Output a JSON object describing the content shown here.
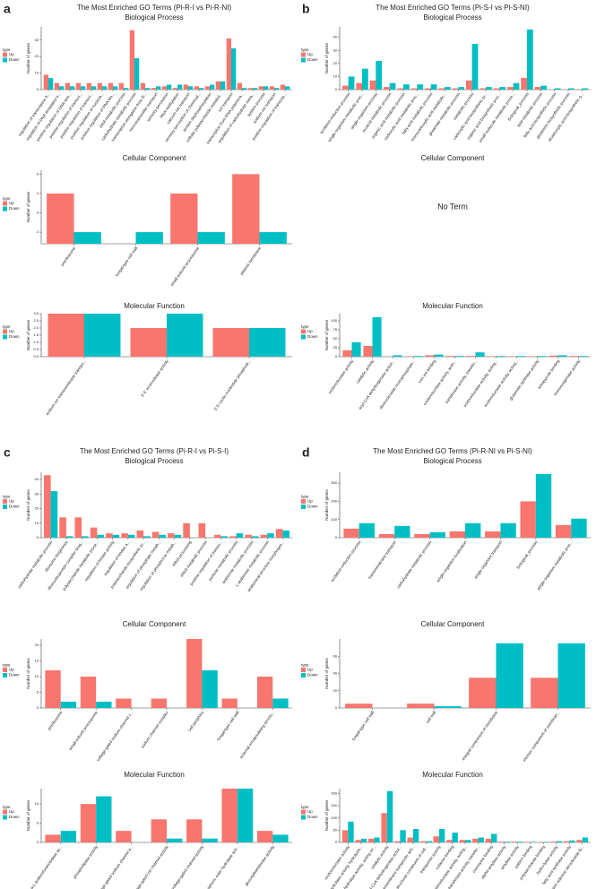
{
  "chart_data": [
    {
      "type": "bar",
      "panel": "a",
      "title": "The Most Enriched GO Terms (Pi-R-I vs Pi-R-NI)",
      "subtitle": "Biological Process",
      "ylabel": "Number of genes",
      "legend_title": "type",
      "categories": [
        "regulation of transcription fr...",
        "regulation of DNA-templated tr...",
        "positive regulation of DNA-tem...",
        "positive regulation of transcri...",
        "positive regulation of transcri...",
        "positive regulation of nucleob...",
        "positive regulation of RNA bio...",
        "DNA metabolic process",
        "carbohydrate metabolic process",
        "transcription elongation from R...",
        "neurotransmitter transport",
        "sensory perception",
        "RNA methylation",
        "calcium ion transport",
        "sensory perception of chemical...",
        "protein dephosphorylation",
        "cellular polysaccharide metabol...",
        "ion transport",
        "transcription from RNA polymera...",
        "regulation of carbohydrate meta...",
        "system process",
        "sodium ion transport",
        "positive regulation of transcrip..."
      ],
      "series": [
        {
          "name": "Up",
          "color": "#f8766d",
          "values": [
            9,
            4,
            4,
            4,
            4,
            4,
            4,
            4,
            36,
            4,
            1,
            2,
            1,
            3,
            2,
            2,
            5,
            31,
            4,
            1,
            2,
            2,
            3
          ]
        },
        {
          "name": "Down",
          "color": "#00bfc4",
          "values": [
            7,
            2,
            2,
            2,
            2,
            2,
            2,
            1,
            19,
            1,
            2,
            3,
            3,
            2,
            1,
            3,
            5,
            25,
            1,
            1,
            2,
            1,
            2
          ]
        }
      ],
      "ylim": [
        0,
        38
      ],
      "yticks": [
        0,
        10,
        20,
        30
      ]
    },
    {
      "type": "bar",
      "subtitle": "Cellular Component",
      "ylabel": "Number of genes",
      "legend_title": "type",
      "categories": [
        "preribosome",
        "fungal-type cell wall",
        "small-subunit processome",
        "plasma membrane"
      ],
      "series": [
        {
          "name": "Up",
          "color": "#f8766d",
          "values": [
            4,
            null,
            4,
            5
          ]
        },
        {
          "name": "Down",
          "color": "#00bfc4",
          "values": [
            2,
            2,
            2,
            2
          ]
        }
      ],
      "ylim": [
        1.4,
        5.2
      ],
      "yticks": [
        2,
        3,
        4,
        5
      ]
    },
    {
      "type": "bar",
      "subtitle": "Molecular Function",
      "ylabel": "Number of genes",
      "legend_title": "type",
      "categories": [
        "sodium ion transmembrane transpo...",
        "3'-5' exonuclease activity",
        "3',5'-cyclic-nucleotide phosphodi..."
      ],
      "series": [
        {
          "name": "Up",
          "color": "#f8766d",
          "values": [
            3,
            2,
            2
          ]
        },
        {
          "name": "Down",
          "color": "#00bfc4",
          "values": [
            3,
            3,
            2
          ]
        }
      ],
      "ylim": [
        0,
        3
      ],
      "yticks": [
        {
          "value": 0,
          "label": "0.0"
        },
        {
          "value": 0.5,
          "label": "0.5"
        },
        {
          "value": 1,
          "label": "1.0"
        },
        {
          "value": 1.5,
          "label": "1.5"
        },
        {
          "value": 2,
          "label": "2.0"
        },
        {
          "value": 2.5,
          "label": "2.5"
        },
        {
          "value": 3,
          "label": "3.0"
        }
      ]
    },
    {
      "type": "bar",
      "panel": "b",
      "title": "The Most Enriched GO Terms (Pi-S-I vs Pi-S-NI)",
      "subtitle": "Biological Process",
      "ylabel": "Number of genes",
      "legend_title": "type",
      "categories": [
        "oxidation-reduction process",
        "single-organism metabolic proc...",
        "single-organism process",
        "oxoacid metabolic process",
        "organic acid metabolic process",
        "carboxylic acid metabolic proc...",
        "fatty acid metabolic process",
        "monocarboxylic acid metabolic...",
        "glutamate metabolic process",
        "metabolic process",
        "carboxylic acid biosynthetic pr...",
        "organic acid biosynthetic proc...",
        "small molecule metabolic proce...",
        "biological_process",
        "lipid metabolic process",
        "fatty acid biosynthetic process",
        "glutamine biosynthetic process",
        "dicarboxylic acid biosynthetic p..."
      ],
      "series": [
        {
          "name": "Up",
          "color": "#f8766d",
          "values": [
            3,
            5,
            7,
            2,
            1,
            1,
            1,
            1,
            1,
            7,
            1,
            1,
            2,
            9,
            2,
            0,
            0,
            0
          ]
        },
        {
          "name": "Down",
          "color": "#00bfc4",
          "values": [
            10,
            16,
            22,
            5,
            4,
            4,
            4,
            2,
            2,
            35,
            2,
            2,
            5,
            46,
            3,
            1,
            1,
            1
          ]
        }
      ],
      "ylim": [
        0,
        48
      ],
      "yticks": [
        0,
        10,
        20,
        30,
        40
      ]
    },
    {
      "type": "empty",
      "subtitle": "Cellular Component",
      "annotation": "No Term"
    },
    {
      "type": "bar",
      "subtitle": "Molecular Function",
      "ylabel": "Number of genes",
      "legend_title": "type",
      "categories": [
        "oxidoreductase activity",
        "catalytic activity",
        "acyl-CoA dehydrogenase activit...",
        "ribonucleoside monophosphate...",
        "iron ion binding",
        "oxidoreductase activity, actin...",
        "transferase activity, transfer...",
        "oxidoreductase activity, acting...",
        "oxidoreductase activity, acting...",
        "glutamate synthase activity",
        "tetrapyrrole binding",
        "monooxygenase activity"
      ],
      "series": [
        {
          "name": "Up",
          "color": "#f8766d",
          "values": [
            18,
            30,
            0,
            1,
            4,
            2,
            2,
            1,
            1,
            1,
            3,
            2
          ]
        },
        {
          "name": "Down",
          "color": "#00bfc4",
          "values": [
            40,
            110,
            4,
            2,
            6,
            2,
            12,
            2,
            2,
            2,
            4,
            2
          ]
        }
      ],
      "ylim": [
        0,
        120
      ],
      "yticks": [
        0,
        25,
        50,
        75,
        100
      ]
    },
    {
      "type": "bar",
      "panel": "c",
      "title": "The Most Enriched GO Terms (Pi-R-I vs Pi-S-I)",
      "subtitle": "Biological Process",
      "ylabel": "Number of genes",
      "legend_title": "type",
      "categories": [
        "carbohydrate metabolic process",
        "ribosome biogenesis",
        "ribonucleoprotein complex biog...",
        "polysaccharide metabolic proce...",
        "regulation of kinase activity",
        "regulation of kinase a...",
        "polysaccharide biosynthetic pr...",
        "regulation of phosphate metab...",
        "regulation of phosphorus metab...",
        "rRNA processing",
        "rRNA metabolic process",
        "positive regulation of transcr...",
        "pentose metabolic process",
        "arabinose metabolic process",
        "L-arabinose metabolic process",
        "anatomical structure morphogen..."
      ],
      "series": [
        {
          "name": "Up",
          "color": "#f8766d",
          "values": [
            43,
            14,
            14,
            7,
            3,
            3,
            5,
            4,
            3,
            10,
            10,
            2,
            1,
            2,
            2,
            6
          ]
        },
        {
          "name": "Down",
          "color": "#00bfc4",
          "values": [
            32,
            1,
            1,
            2,
            2,
            2,
            1,
            2,
            2,
            0,
            0,
            1,
            3,
            1,
            3,
            5
          ]
        }
      ],
      "ylim": [
        0,
        45
      ],
      "yticks": [
        0,
        10,
        20,
        30,
        40
      ]
    },
    {
      "type": "bar",
      "subtitle": "Cellular Component",
      "ylabel": "Number of genes",
      "legend_title": "type",
      "categories": [
        "preribosome",
        "small-subunit processome",
        "voltage-gated sodium channel c...",
        "sodium channel complex",
        "cell periphery",
        "fungal-type cell wall",
        "external encapsulating structu..."
      ],
      "series": [
        {
          "name": "Up",
          "color": "#f8766d",
          "values": [
            12,
            10,
            3,
            3,
            22,
            3,
            10
          ]
        },
        {
          "name": "Down",
          "color": "#00bfc4",
          "values": [
            2,
            2,
            0,
            0,
            12,
            0,
            3
          ]
        }
      ],
      "ylim": [
        0,
        22
      ],
      "yticks": [
        0,
        5,
        10,
        15,
        20
      ]
    },
    {
      "type": "bar",
      "subtitle": "Molecular Function",
      "ylabel": "Number of genes",
      "legend_title": "type",
      "categories": [
        "alpha-L-arabinofuranosidase ac...",
        "phospholipase activity",
        "voltage-gated sodium channel a...",
        "voltage-gated ion channel activity",
        "voltage-gated channel activity",
        "phosphoric ester hydrolase acti...",
        "glucosyltransferase activity"
      ],
      "series": [
        {
          "name": "Up",
          "color": "#f8766d",
          "values": [
            2,
            10,
            3,
            6,
            6,
            14,
            3
          ]
        },
        {
          "name": "Down",
          "color": "#00bfc4",
          "values": [
            3,
            12,
            0,
            1,
            1,
            14,
            2
          ]
        }
      ],
      "ylim": [
        0,
        14
      ],
      "yticks": [
        0,
        5,
        10
      ]
    },
    {
      "type": "bar",
      "panel": "d",
      "title": "The Most Enriched GO Terms (Pi-R-NI vs Pi-S-NI)",
      "subtitle": "Biological Process",
      "ylabel": "Number of genes",
      "legend_title": "type",
      "categories": [
        "oxidation-reduction process",
        "transmembrane transport",
        "carbohydrate metabolic process",
        "single-organism localization",
        "single-organism transport",
        "biological_process",
        "single-organism metabolic proc..."
      ],
      "series": [
        {
          "name": "Up",
          "color": "#f8766d",
          "values": [
            50,
            20,
            20,
            35,
            35,
            200,
            70
          ]
        },
        {
          "name": "Down",
          "color": "#00bfc4",
          "values": [
            80,
            65,
            30,
            80,
            80,
            350,
            105
          ]
        }
      ],
      "ylim": [
        0,
        360
      ],
      "yticks": [
        0,
        100,
        200,
        300
      ]
    },
    {
      "type": "bar",
      "subtitle": "Cellular Component",
      "ylabel": "Number of genes",
      "legend_title": "type",
      "categories": [
        "fungal-type cell wall",
        "cell wall",
        "integral component of membrane",
        "intrinsic component of membran..."
      ],
      "series": [
        {
          "name": "Up",
          "color": "#f8766d",
          "values": [
            5,
            5,
            35,
            35
          ]
        },
        {
          "name": "Down",
          "color": "#00bfc4",
          "values": [
            0,
            2,
            75,
            75
          ]
        }
      ],
      "ylim": [
        0,
        80
      ],
      "yticks": [
        0,
        20,
        40,
        60
      ]
    },
    {
      "type": "bar",
      "subtitle": "Molecular Function",
      "ylabel": "Number of genes",
      "legend_title": "type",
      "categories": [
        "oxidoreductase activity",
        "hydrolase activity, hydrolyzin...",
        "hydrolase activity, acting on...",
        "catalytic activity",
        "acyl-CoA dehydrogenase activi...",
        "transmembrane transporter acti...",
        "structural constituent of cell...",
        "transporter activity",
        "cofactor binding",
        "oxidoreductase activity, acting...",
        "transferase activity, transfer...",
        "coenzyme binding",
        "alpha-amylase activity",
        "amylase activity",
        "pattern binding",
        "polysaccharide binding",
        "hydro-lyase activity",
        "fatty acid synthase activity",
        "flavin adenine dinucleotide bi..."
      ],
      "series": [
        {
          "name": "Up",
          "color": "#f8766d",
          "values": [
            50,
            10,
            15,
            120,
            5,
            20,
            5,
            25,
            10,
            10,
            15,
            15,
            3,
            3,
            2,
            2,
            3,
            5,
            10
          ]
        },
        {
          "name": "Down",
          "color": "#00bfc4",
          "values": [
            85,
            15,
            20,
            210,
            50,
            55,
            5,
            55,
            40,
            10,
            20,
            35,
            3,
            3,
            2,
            2,
            5,
            8,
            20
          ]
        }
      ],
      "ylim": [
        0,
        220
      ],
      "yticks": [
        0,
        50,
        100,
        150,
        200
      ]
    }
  ]
}
